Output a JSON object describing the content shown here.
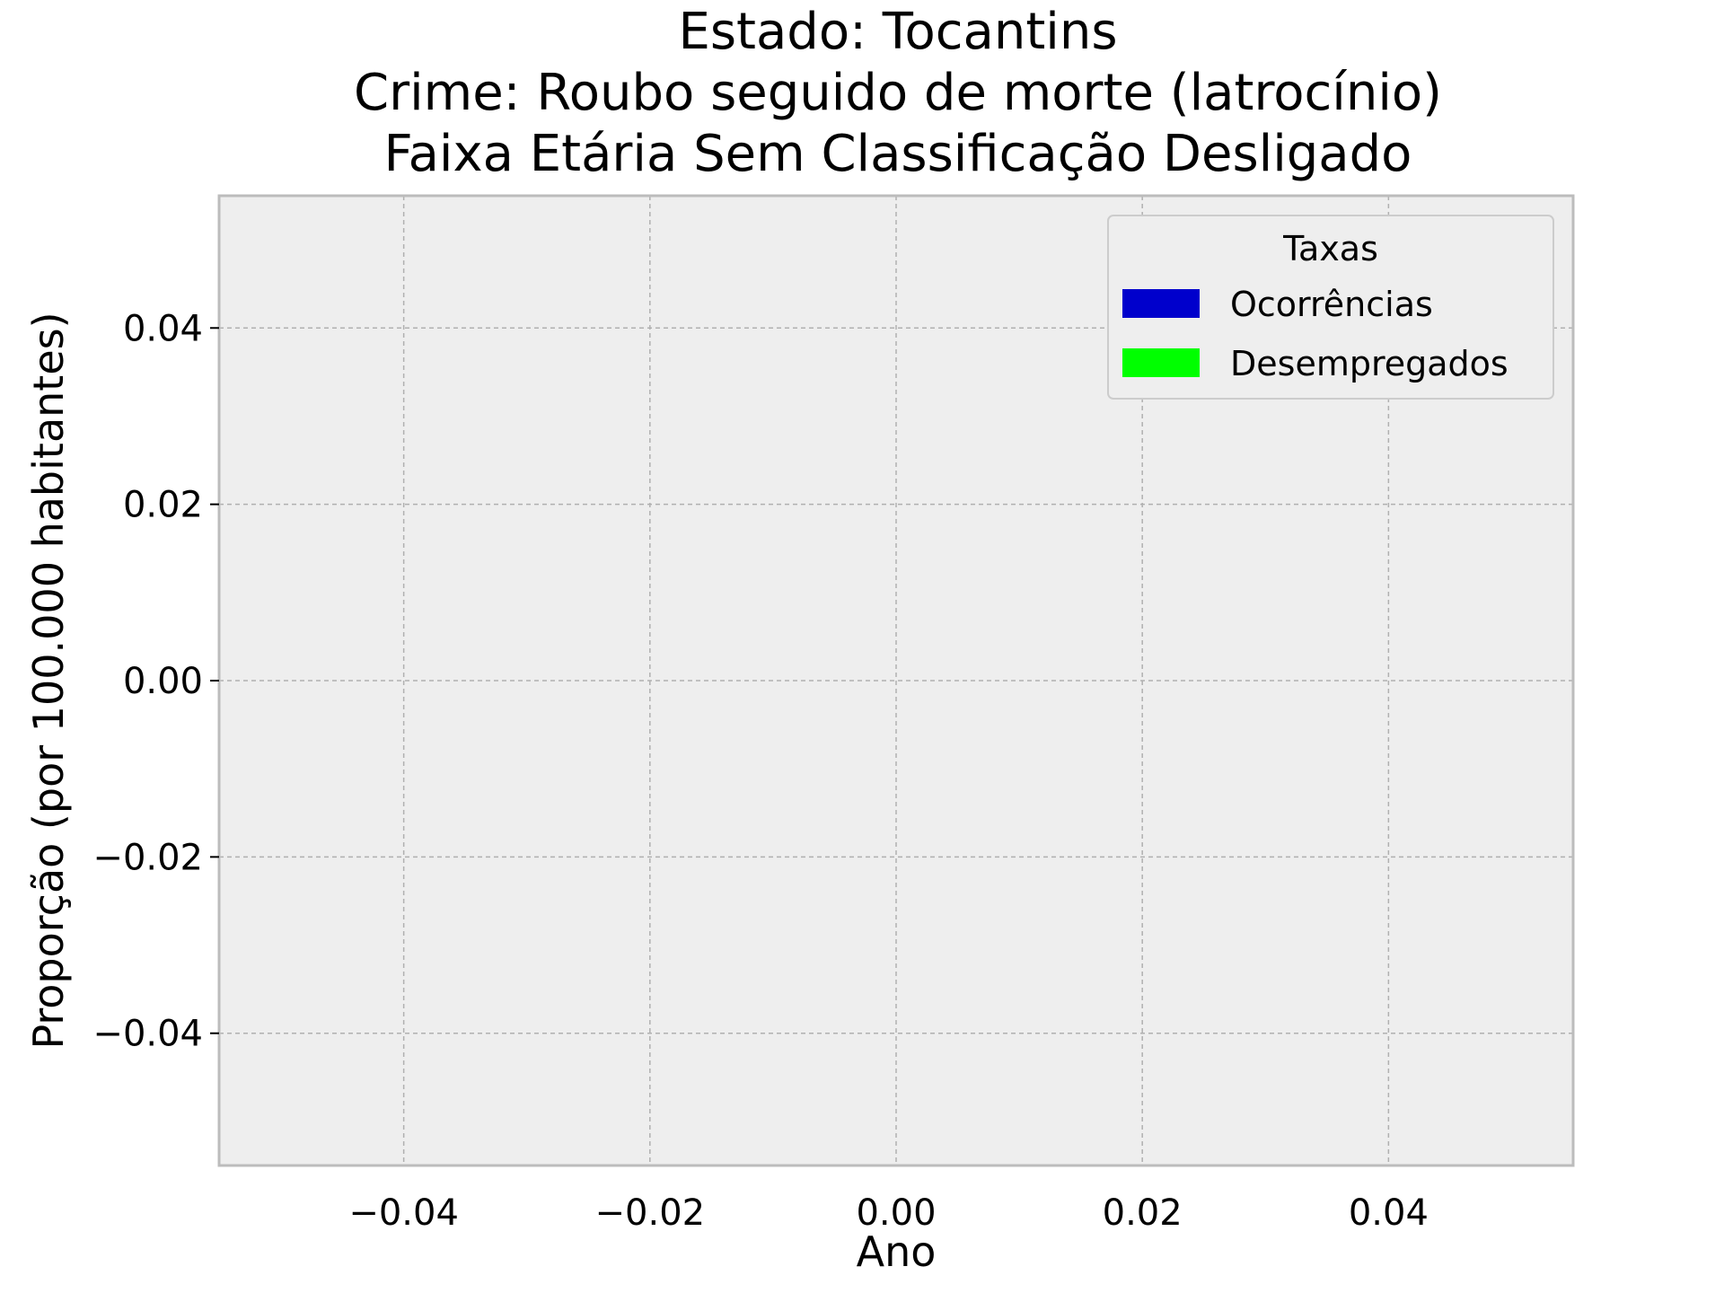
{
  "chart_data": {
    "type": "bar",
    "title": [
      "Estado: Tocantins",
      "Crime: Roubo seguido de morte (latrocínio)",
      "Faixa Etária Sem Classificação   Desligado"
    ],
    "xlabel": "Ano",
    "ylabel": "Proporção (por 100.000 habitantes)",
    "xlim": [
      -0.055,
      0.055
    ],
    "ylim": [
      -0.055,
      0.055
    ],
    "x_ticks": [
      "−0.04",
      "−0.02",
      "0.00",
      "0.02",
      "0.04"
    ],
    "x_tick_values": [
      -0.04,
      -0.02,
      0.0,
      0.02,
      0.04
    ],
    "y_ticks": [
      "0.04",
      "0.02",
      "0.00",
      "−0.02",
      "−0.04"
    ],
    "y_tick_values": [
      0.04,
      0.02,
      0.0,
      -0.02,
      -0.04
    ],
    "grid": true,
    "legend": {
      "title": "Taxas",
      "placement": "top-right",
      "entries": [
        {
          "label": "Ocorrências",
          "color": "#0000cc"
        },
        {
          "label": "Desempregados",
          "color": "#00ff00"
        }
      ]
    },
    "series": [
      {
        "name": "Ocorrências",
        "color": "#0000cc",
        "values": []
      },
      {
        "name": "Desempregados",
        "color": "#00ff00",
        "values": []
      }
    ],
    "categories": []
  },
  "colors": {
    "plot_background": "#eeeeee",
    "frame": "#bcbcbc",
    "grid": "#b0b0b0"
  }
}
